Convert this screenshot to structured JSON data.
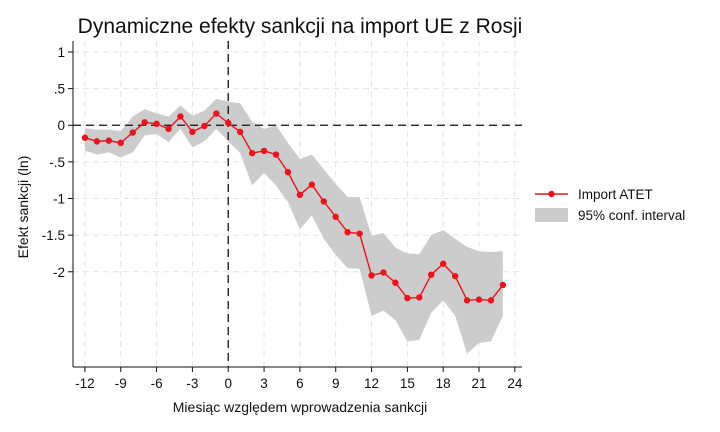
{
  "chart_data": {
    "type": "line",
    "title": "Dynamiczne efekty sankcji na import UE z Rosji",
    "xlabel": "Miesiąc względem wprowadzenia sankcji",
    "ylabel": "Efekt sankcji (ln)",
    "xlim": [
      -13,
      24.6
    ],
    "ylim": [
      -3.3,
      1.15
    ],
    "xticks": [
      -12,
      -9,
      -6,
      -3,
      0,
      3,
      6,
      9,
      12,
      15,
      18,
      21,
      24
    ],
    "yticks": [
      1,
      0.5,
      0,
      -0.5,
      -1,
      -1.5,
      -2
    ],
    "ytick_labels": [
      "1",
      ".5",
      "0",
      "-.5",
      "-1",
      "-1.5",
      "-2"
    ],
    "grid": true,
    "reference_lines": {
      "x": 0,
      "y": 0
    },
    "legend_position": "right",
    "x": [
      -12,
      -11,
      -10,
      -9,
      -8,
      -7,
      -6,
      -5,
      -4,
      -3,
      -2,
      -1,
      0,
      1,
      2,
      3,
      4,
      5,
      6,
      7,
      8,
      9,
      10,
      11,
      12,
      13,
      14,
      15,
      16,
      17,
      18,
      19,
      20,
      21,
      22,
      23
    ],
    "series": [
      {
        "name": "Import ATET",
        "color": "#e8141e",
        "values": [
          -0.17,
          -0.22,
          -0.21,
          -0.24,
          -0.1,
          0.04,
          0.02,
          -0.05,
          0.12,
          -0.09,
          -0.01,
          0.16,
          0.03,
          -0.09,
          -0.38,
          -0.35,
          -0.4,
          -0.64,
          -0.95,
          -0.81,
          -1.04,
          -1.25,
          -1.46,
          -1.48,
          -2.05,
          -2.01,
          -2.15,
          -2.36,
          -2.35,
          -2.04,
          -1.89,
          -2.06,
          -2.39,
          -2.38,
          -2.39,
          -2.18
        ]
      },
      {
        "name": "95% conf. interval",
        "color": "#cccccc",
        "lower": [
          -0.35,
          -0.4,
          -0.37,
          -0.44,
          -0.37,
          -0.14,
          -0.12,
          -0.23,
          -0.05,
          -0.3,
          -0.22,
          -0.05,
          -0.22,
          -0.38,
          -0.82,
          -0.65,
          -0.82,
          -1.05,
          -1.42,
          -1.23,
          -1.55,
          -1.77,
          -1.95,
          -1.96,
          -2.6,
          -2.53,
          -2.66,
          -2.95,
          -2.93,
          -2.56,
          -2.39,
          -2.6,
          -3.12,
          -2.97,
          -2.95,
          -2.6
        ],
        "upper": [
          -0.04,
          -0.06,
          -0.06,
          -0.08,
          0.12,
          0.22,
          0.16,
          0.12,
          0.27,
          0.13,
          0.2,
          0.36,
          0.32,
          0.3,
          0.05,
          -0.05,
          0.0,
          -0.24,
          -0.46,
          -0.4,
          -0.6,
          -0.8,
          -0.98,
          -0.98,
          -1.51,
          -1.47,
          -1.67,
          -1.75,
          -1.76,
          -1.5,
          -1.43,
          -1.55,
          -1.66,
          -1.72,
          -1.73,
          -1.72
        ]
      }
    ]
  }
}
